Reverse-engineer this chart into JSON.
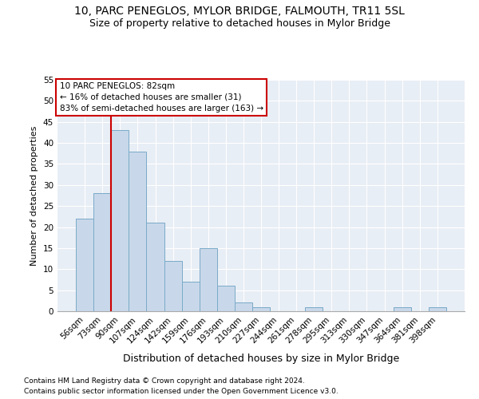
{
  "title": "10, PARC PENEGLOS, MYLOR BRIDGE, FALMOUTH, TR11 5SL",
  "subtitle": "Size of property relative to detached houses in Mylor Bridge",
  "xlabel": "Distribution of detached houses by size in Mylor Bridge",
  "ylabel": "Number of detached properties",
  "footnote1": "Contains HM Land Registry data © Crown copyright and database right 2024.",
  "footnote2": "Contains public sector information licensed under the Open Government Licence v3.0.",
  "bar_labels": [
    "56sqm",
    "73sqm",
    "90sqm",
    "107sqm",
    "124sqm",
    "142sqm",
    "159sqm",
    "176sqm",
    "193sqm",
    "210sqm",
    "227sqm",
    "244sqm",
    "261sqm",
    "278sqm",
    "295sqm",
    "313sqm",
    "330sqm",
    "347sqm",
    "364sqm",
    "381sqm",
    "398sqm"
  ],
  "bar_values": [
    22,
    28,
    43,
    38,
    21,
    12,
    7,
    15,
    6,
    2,
    1,
    0,
    0,
    1,
    0,
    0,
    0,
    0,
    1,
    0,
    1
  ],
  "bar_color": "#c8d8ea",
  "bar_edge_color": "#7aaac8",
  "vline_color": "#cc0000",
  "vline_x": 1.5,
  "annotation_text": "10 PARC PENEGLOS: 82sqm\n← 16% of detached houses are smaller (31)\n83% of semi-detached houses are larger (163) →",
  "annotation_box_color": "#ffffff",
  "annotation_box_edge": "#cc0000",
  "ylim": [
    0,
    55
  ],
  "yticks": [
    0,
    5,
    10,
    15,
    20,
    25,
    30,
    35,
    40,
    45,
    50,
    55
  ],
  "background_color": "#ffffff",
  "plot_bg_color": "#e8eef5",
  "title_fontsize": 10,
  "subtitle_fontsize": 9,
  "xlabel_fontsize": 9,
  "ylabel_fontsize": 8,
  "tick_fontsize": 7.5,
  "footnote_fontsize": 6.5
}
